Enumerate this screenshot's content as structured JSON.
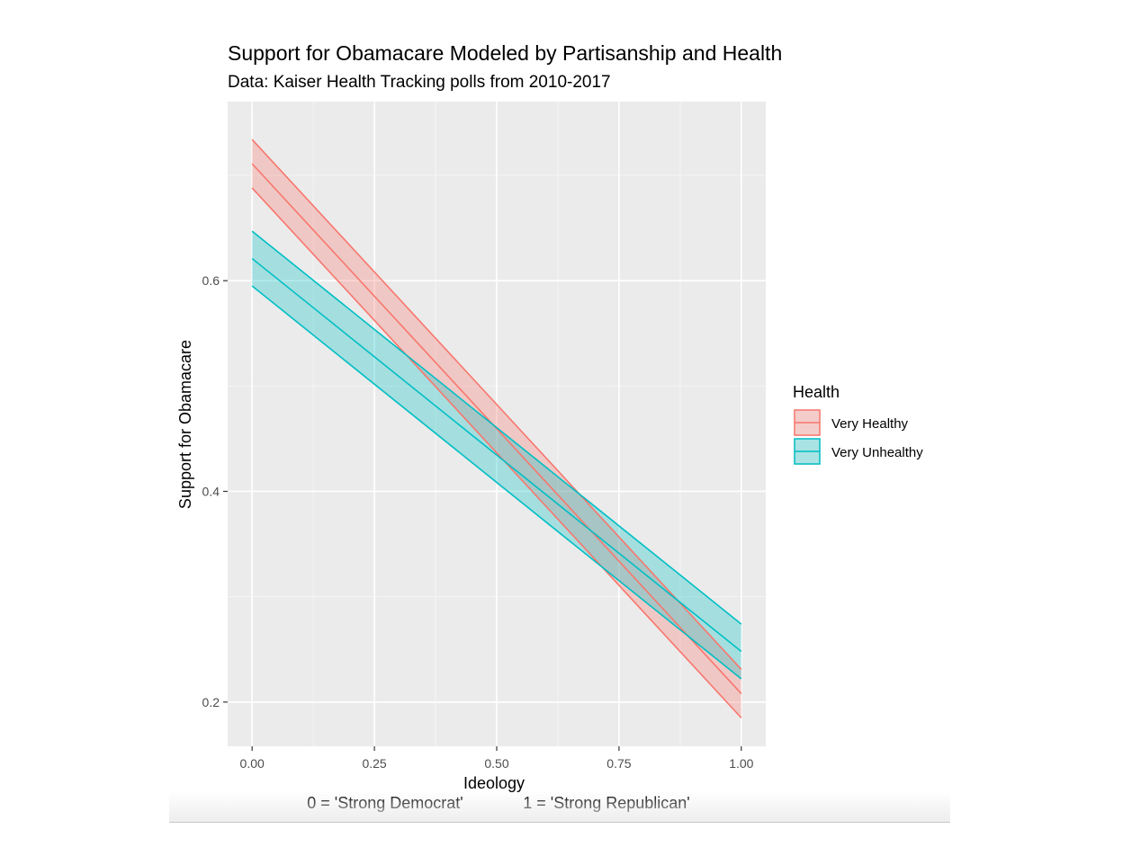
{
  "chart_data": {
    "type": "line",
    "title": "Support for Obamacare Modeled by Partisanship and Health",
    "subtitle": "Data: Kaiser Health Tracking polls from 2010-2017",
    "xlabel": "Ideology",
    "xlabel_note_left": "0 = 'Strong Democrat'",
    "xlabel_note_right": "1 = 'Strong Republican'",
    "ylabel": "Support for Obamacare",
    "xlim": [
      -0.05,
      1.05
    ],
    "ylim": [
      0.158,
      0.77
    ],
    "x_ticks": [
      0.0,
      0.25,
      0.5,
      0.75,
      1.0
    ],
    "x_tick_labels": [
      "0.00",
      "0.25",
      "0.50",
      "0.75",
      "1.00"
    ],
    "y_ticks": [
      0.2,
      0.4,
      0.6
    ],
    "y_tick_labels": [
      "0.2",
      "0.4",
      "0.6"
    ],
    "grid": true,
    "legend": {
      "title": "Health",
      "position": "right"
    },
    "series": [
      {
        "name": "Very Healthy",
        "color": "#F8766D",
        "x": [
          0.0,
          1.0
        ],
        "fit": [
          0.711,
          0.208
        ],
        "lower": [
          0.688,
          0.185
        ],
        "upper": [
          0.734,
          0.231
        ]
      },
      {
        "name": "Very Unhealthy",
        "color": "#00BFC4",
        "x": [
          0.0,
          1.0
        ],
        "fit": [
          0.621,
          0.248
        ],
        "lower": [
          0.595,
          0.222
        ],
        "upper": [
          0.647,
          0.274
        ]
      }
    ]
  }
}
